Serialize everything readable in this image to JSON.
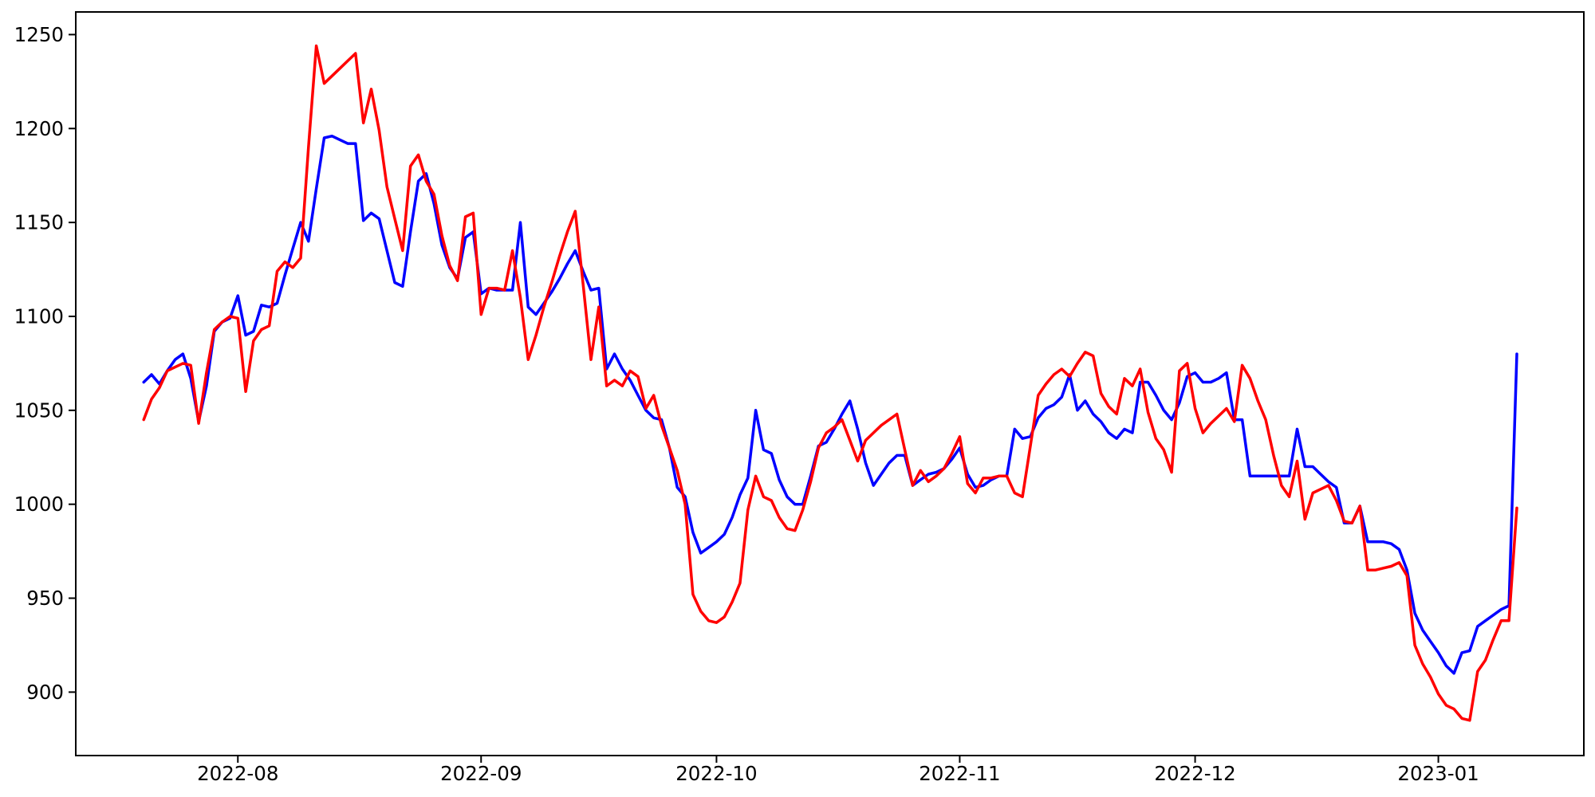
{
  "page": {
    "background_color": "#ffffff",
    "title": ""
  },
  "chart_data": {
    "type": "line",
    "title": "",
    "xlabel": "",
    "ylabel": "",
    "grid": false,
    "legend": null,
    "x_start_date": "2022-07-20",
    "x_frequency": "daily",
    "num_points": 176,
    "ylim": [
      866,
      1263
    ],
    "y_ticks": [
      1250,
      1200,
      1150,
      1100,
      1050,
      1000,
      950,
      900
    ],
    "x_tick_labels": [
      {
        "label": "2022-08",
        "index": 12
      },
      {
        "label": "2022-09",
        "index": 43
      },
      {
        "label": "2022-10",
        "index": 73
      },
      {
        "label": "2022-11",
        "index": 104
      },
      {
        "label": "2022-12",
        "index": 134
      },
      {
        "label": "2023-01",
        "index": 165
      }
    ],
    "axis_color": "#000000",
    "series": [
      {
        "name": "series-blue",
        "color": "#0000ff",
        "values": [
          1065,
          1069,
          1064,
          1071,
          1077,
          1080,
          1067,
          1044,
          1063,
          1092,
          1097,
          1099,
          1111,
          1090,
          1092,
          1106,
          1105,
          1107,
          1122,
          1136,
          1150,
          1140,
          1168,
          1195,
          1196,
          1194,
          1192,
          1192,
          1151,
          1155,
          1152,
          1135,
          1118,
          1116,
          1145,
          1172,
          1176,
          1160,
          1138,
          1126,
          1120,
          1142,
          1145,
          1112,
          1115,
          1114,
          1114,
          1114,
          1150,
          1105,
          1101,
          1107,
          1113,
          1120,
          1128,
          1135,
          1124,
          1114,
          1115,
          1072,
          1080,
          1072,
          1066,
          1058,
          1050,
          1046,
          1045,
          1030,
          1009,
          1004,
          985,
          974,
          977,
          980,
          984,
          993,
          1005,
          1014,
          1050,
          1029,
          1027,
          1013,
          1004,
          1000,
          1000,
          1015,
          1031,
          1033,
          1040,
          1048,
          1055,
          1040,
          1022,
          1010,
          1016,
          1022,
          1026,
          1026,
          1010,
          1013,
          1016,
          1017,
          1019,
          1024,
          1030,
          1016,
          1009,
          1010,
          1013,
          1015,
          1015,
          1040,
          1035,
          1036,
          1046,
          1051,
          1053,
          1057,
          1069,
          1050,
          1055,
          1048,
          1044,
          1038,
          1035,
          1040,
          1038,
          1065,
          1065,
          1058,
          1050,
          1045,
          1054,
          1068,
          1070,
          1065,
          1065,
          1067,
          1070,
          1045,
          1045,
          1015,
          1015,
          1015,
          1015,
          1015,
          1015,
          1040,
          1020,
          1020,
          1016,
          1012,
          1009,
          990,
          990,
          999,
          980,
          980,
          980,
          979,
          976,
          965,
          942,
          933,
          927,
          921,
          914,
          910,
          921,
          922,
          935,
          938,
          941,
          944,
          946,
          1080
        ]
      },
      {
        "name": "series-red",
        "color": "#ff0000",
        "values": [
          1045,
          1056,
          1062,
          1071,
          1073,
          1075,
          1074,
          1043,
          1070,
          1093,
          1097,
          1100,
          1099,
          1060,
          1087,
          1093,
          1095,
          1124,
          1129,
          1126,
          1131,
          1190,
          1244,
          1224,
          1228,
          1232,
          1236,
          1240,
          1203,
          1221,
          1199,
          1169,
          1152,
          1135,
          1180,
          1186,
          1172,
          1165,
          1143,
          1127,
          1119,
          1153,
          1155,
          1101,
          1115,
          1115,
          1114,
          1135,
          1110,
          1077,
          1090,
          1105,
          1118,
          1132,
          1145,
          1156,
          1117,
          1077,
          1105,
          1063,
          1066,
          1063,
          1071,
          1068,
          1051,
          1058,
          1042,
          1030,
          1018,
          1000,
          952,
          943,
          938,
          937,
          940,
          948,
          958,
          997,
          1015,
          1004,
          1002,
          993,
          987,
          986,
          997,
          1012,
          1030,
          1038,
          1041,
          1045,
          1034,
          1023,
          1034,
          1038,
          1042,
          1045,
          1048,
          1029,
          1010,
          1018,
          1012,
          1015,
          1019,
          1027,
          1036,
          1011,
          1006,
          1014,
          1014,
          1015,
          1015,
          1006,
          1004,
          1031,
          1058,
          1064,
          1069,
          1072,
          1068,
          1075,
          1081,
          1079,
          1059,
          1052,
          1048,
          1067,
          1063,
          1072,
          1049,
          1035,
          1029,
          1017,
          1071,
          1075,
          1051,
          1038,
          1043,
          1047,
          1051,
          1044,
          1074,
          1067,
          1055,
          1045,
          1026,
          1010,
          1004,
          1023,
          992,
          1006,
          1008,
          1010,
          1002,
          991,
          990,
          999,
          965,
          965,
          966,
          967,
          969,
          962,
          925,
          915,
          908,
          899,
          893,
          891,
          886,
          885,
          911,
          917,
          928,
          938,
          938,
          998
        ]
      }
    ]
  }
}
